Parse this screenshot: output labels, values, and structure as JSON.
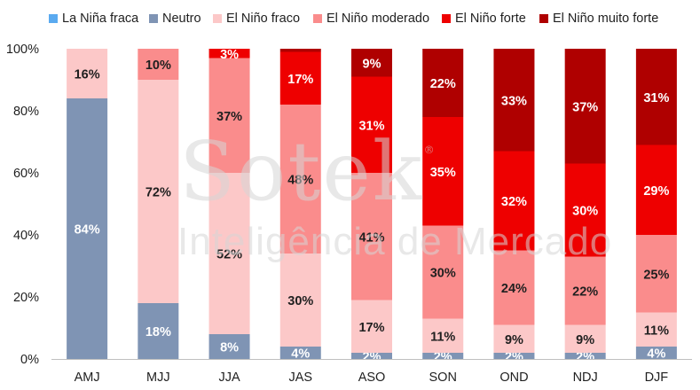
{
  "chart_data": {
    "type": "bar",
    "stacked": true,
    "categories": [
      "AMJ",
      "MJJ",
      "JJA",
      "JAS",
      "ASO",
      "SON",
      "OND",
      "NDJ",
      "DJF"
    ],
    "series": [
      {
        "name": "La Niña fraca",
        "color": "#5aaaf0",
        "values": [
          0,
          0,
          0,
          0,
          0,
          0,
          0,
          0,
          0
        ]
      },
      {
        "name": "Neutro",
        "color": "#7f94b4",
        "values": [
          84,
          18,
          8,
          4,
          2,
          2,
          2,
          2,
          4
        ]
      },
      {
        "name": "El Niño fraco",
        "color": "#fcc8c8",
        "values": [
          16,
          72,
          52,
          30,
          17,
          11,
          9,
          9,
          11
        ]
      },
      {
        "name": "El Niño moderado",
        "color": "#fa8c8c",
        "values": [
          0,
          10,
          37,
          48,
          41,
          30,
          24,
          22,
          25
        ]
      },
      {
        "name": "El Niño forte",
        "color": "#ee0000",
        "values": [
          0,
          0,
          3,
          17,
          31,
          35,
          32,
          30,
          29
        ]
      },
      {
        "name": "El Niño muito forte",
        "color": "#af0000",
        "values": [
          0,
          0,
          0,
          1,
          9,
          22,
          33,
          37,
          31
        ]
      }
    ],
    "yticks": [
      "0%",
      "20%",
      "40%",
      "60%",
      "80%",
      "100%"
    ],
    "ylim": [
      0,
      100
    ],
    "label_threshold": 2,
    "legend_position": "top",
    "grid": false
  },
  "watermark": {
    "line1": "Sotek",
    "mark": "®",
    "line2": "Inteligência de Mercado"
  }
}
